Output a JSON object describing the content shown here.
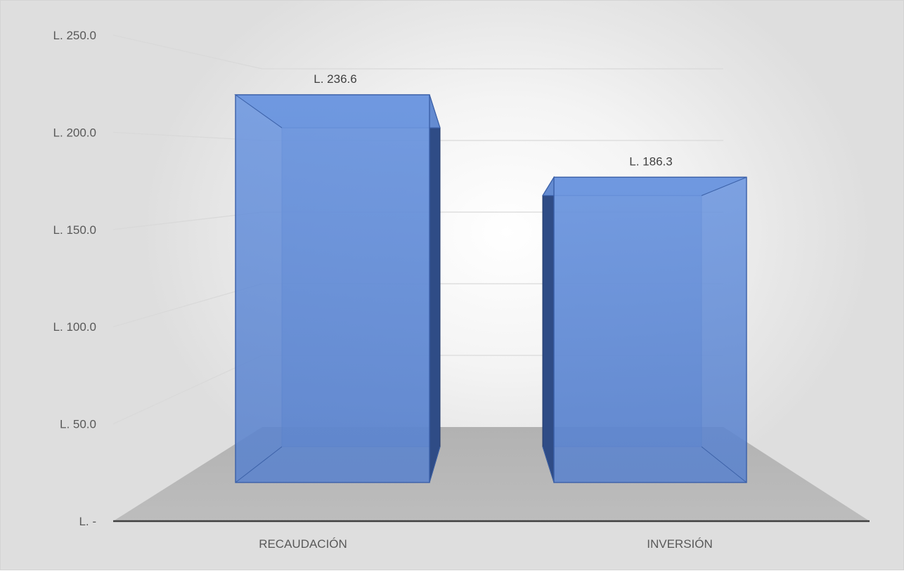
{
  "chart_data": {
    "type": "bar",
    "style": "3d",
    "categories": [
      "RECAUDACIÓN",
      "INVERSIÓN"
    ],
    "values": [
      236.6,
      186.3
    ],
    "data_labels": [
      "L. 236.6",
      "L. 186.3"
    ],
    "y_ticks": [
      {
        "value": 0,
        "label": "L. -"
      },
      {
        "value": 50,
        "label": "L. 50.0"
      },
      {
        "value": 100,
        "label": "L. 100.0"
      },
      {
        "value": 150,
        "label": "L. 150.0"
      },
      {
        "value": 200,
        "label": "L. 200.0"
      },
      {
        "value": 250,
        "label": "L. 250.0"
      }
    ],
    "ylim": [
      0,
      250
    ],
    "grid": true,
    "legend": "none",
    "bar_color": "#4472C4"
  }
}
